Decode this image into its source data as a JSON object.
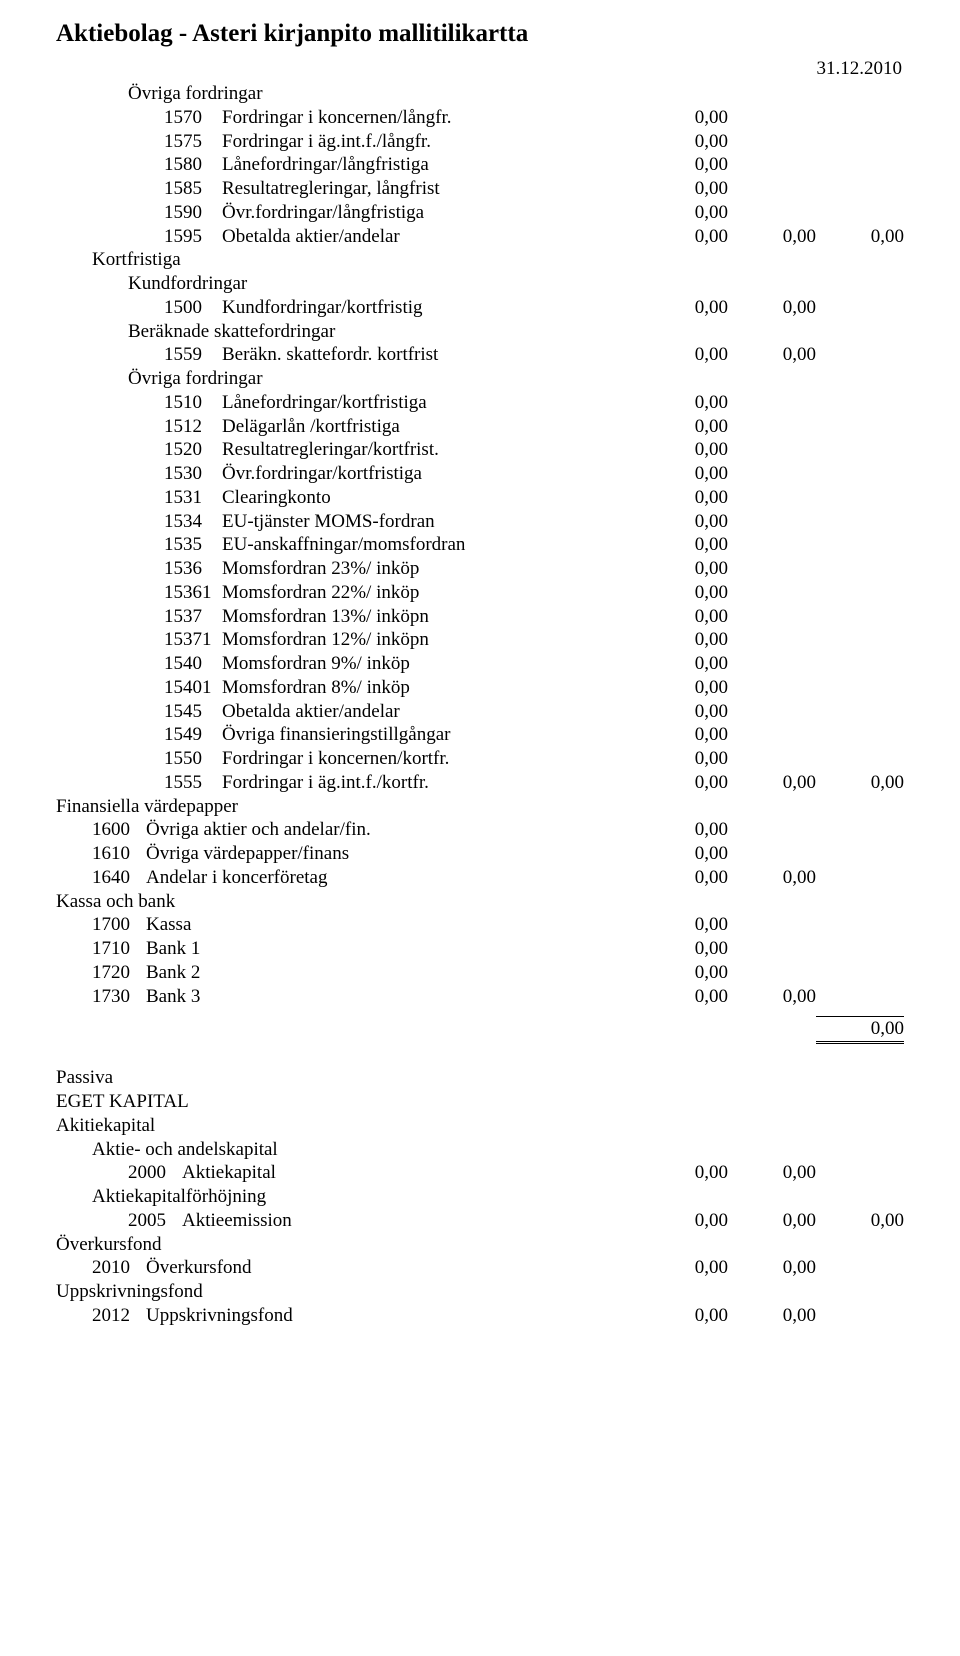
{
  "title": "Aktiebolag - Asteri kirjanpito mallitilikartta",
  "date": "31.12.2010",
  "zero": "0,00",
  "h": {
    "ovriga_fordr": "Övriga fordringar",
    "kortfristiga": "Kortfristiga",
    "kundfordringar": "Kundfordringar",
    "beraknade_skatt": "Beräknade skattefordringar",
    "finansiella_vp": "Finansiella värdepapper",
    "kassa_bank": "Kassa och bank",
    "passiva": "Passiva",
    "eget_kapital": "EGET KAPITAL",
    "akitiekapital": "Akitiekapital",
    "aktie_andels": "Aktie- och andelskapital",
    "aktiekap_forhoj": "Aktiekapitalförhöjning",
    "overkursfond": "Överkursfond",
    "uppskrivningsfond": "Uppskrivningsfond"
  },
  "r": {
    "1570": {
      "c": "1570",
      "d": "Fordringar i koncernen/långfr."
    },
    "1575": {
      "c": "1575",
      "d": "Fordringar i äg.int.f./långfr."
    },
    "1580": {
      "c": "1580",
      "d": "Lånefordringar/långfristiga"
    },
    "1585": {
      "c": "1585",
      "d": "Resultatregleringar, långfrist"
    },
    "1590": {
      "c": "1590",
      "d": "Övr.fordringar/långfristiga"
    },
    "1595": {
      "c": "1595",
      "d": "Obetalda aktier/andelar"
    },
    "1500": {
      "c": "1500",
      "d": "Kundfordringar/kortfristig"
    },
    "1559": {
      "c": "1559",
      "d": "Beräkn. skattefordr. kortfrist"
    },
    "1510": {
      "c": "1510",
      "d": "Lånefordringar/kortfristiga"
    },
    "1512": {
      "c": "1512",
      "d": "Delägarlån /kortfristiga"
    },
    "1520": {
      "c": "1520",
      "d": "Resultatregleringar/kortfrist."
    },
    "1530": {
      "c": "1530",
      "d": "Övr.fordringar/kortfristiga"
    },
    "1531": {
      "c": "1531",
      "d": "Clearingkonto"
    },
    "1534": {
      "c": "1534",
      "d": "EU-tjänster MOMS-fordran"
    },
    "1535": {
      "c": "1535",
      "d": "EU-anskaffningar/momsfordran"
    },
    "1536": {
      "c": "1536",
      "d": "Momsfordran 23%/ inköp"
    },
    "15361": {
      "c": "15361",
      "d": "Momsfordran 22%/ inköp"
    },
    "1537": {
      "c": "1537",
      "d": "Momsfordran 13%/ inköpn"
    },
    "15371": {
      "c": "15371",
      "d": "Momsfordran 12%/ inköpn"
    },
    "1540": {
      "c": "1540",
      "d": "Momsfordran  9%/ inköp"
    },
    "15401": {
      "c": "15401",
      "d": "Momsfordran  8%/ inköp"
    },
    "1545": {
      "c": "1545",
      "d": "Obetalda aktier/andelar"
    },
    "1549": {
      "c": "1549",
      "d": "Övriga finansieringstillgångar"
    },
    "1550": {
      "c": "1550",
      "d": "Fordringar i koncernen/kortfr."
    },
    "1555": {
      "c": "1555",
      "d": "Fordringar i äg.int.f./kortfr."
    },
    "1600": {
      "c": "1600",
      "d": "Övriga aktier och andelar/fin."
    },
    "1610": {
      "c": "1610",
      "d": "Övriga värdepapper/finans"
    },
    "1640": {
      "c": "1640",
      "d": "Andelar i koncerföretag"
    },
    "1700": {
      "c": "1700",
      "d": "Kassa"
    },
    "1710": {
      "c": "1710",
      "d": "Bank 1"
    },
    "1720": {
      "c": "1720",
      "d": "Bank 2"
    },
    "1730": {
      "c": "1730",
      "d": "Bank 3"
    },
    "2000": {
      "c": "2000",
      "d": "Aktiekapital"
    },
    "2005": {
      "c": "2005",
      "d": "Aktieemission"
    },
    "2010": {
      "c": "2010",
      "d": "Överkursfond"
    },
    "2012": {
      "c": "2012",
      "d": "Uppskrivningsfond"
    }
  }
}
